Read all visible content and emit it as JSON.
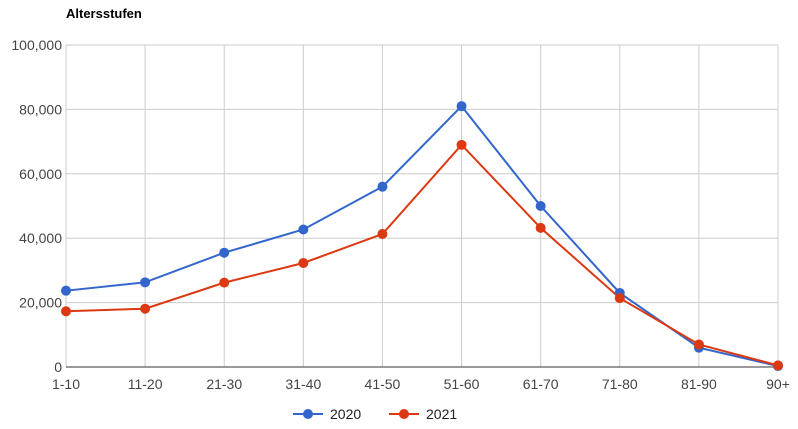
{
  "chart_data": {
    "type": "line",
    "title": "Altersstufen",
    "xlabel": "",
    "ylabel": "",
    "categories": [
      "1-10",
      "11-20",
      "21-30",
      "31-40",
      "41-50",
      "51-60",
      "61-70",
      "71-80",
      "81-90",
      "90+"
    ],
    "ylim": [
      0,
      100000
    ],
    "yticks": [
      0,
      20000,
      40000,
      60000,
      80000,
      100000
    ],
    "ytick_labels": [
      "0",
      "20,000",
      "40,000",
      "60,000",
      "80,000",
      "100,000"
    ],
    "grid": true,
    "legend_position": "bottom",
    "series": [
      {
        "name": "2020",
        "color": "#3366cc",
        "values": [
          23700,
          26300,
          35500,
          42700,
          56000,
          81000,
          50000,
          23000,
          6000,
          300
        ]
      },
      {
        "name": "2021",
        "color": "#dc3912",
        "values": [
          17300,
          18100,
          26200,
          32300,
          41300,
          69000,
          43200,
          21400,
          7000,
          500
        ]
      }
    ]
  }
}
